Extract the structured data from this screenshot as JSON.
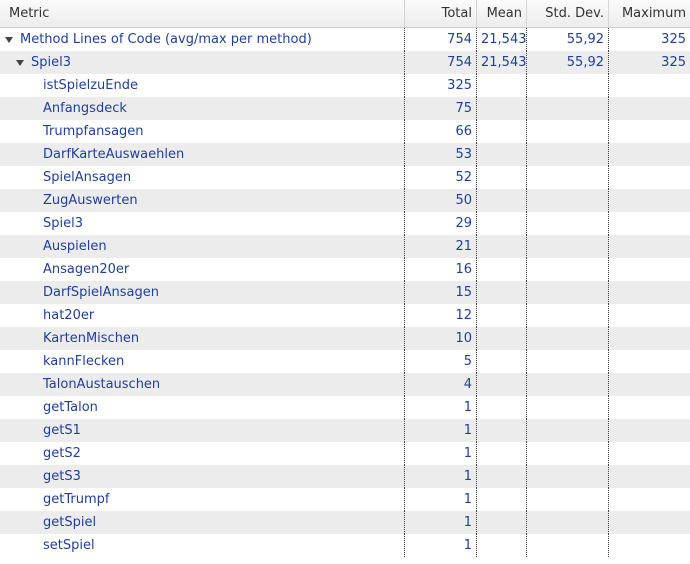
{
  "columns": {
    "metric": "Metric",
    "total": "Total",
    "mean": "Mean",
    "stddev": "Std. Dev.",
    "maximum": "Maximum"
  },
  "root": {
    "label": "Method Lines of Code (avg/max per method)",
    "total": "754",
    "mean": "21,543",
    "stddev": "55,92",
    "maximum": "325"
  },
  "class": {
    "label": "Spiel3",
    "total": "754",
    "mean": "21,543",
    "stddev": "55,92",
    "maximum": "325"
  },
  "methods": [
    {
      "label": "istSpielzuEnde",
      "total": "325"
    },
    {
      "label": "Anfangsdeck",
      "total": "75"
    },
    {
      "label": "Trumpfansagen",
      "total": "66"
    },
    {
      "label": "DarfKarteAuswaehlen",
      "total": "53"
    },
    {
      "label": "SpielAnsagen",
      "total": "52"
    },
    {
      "label": "ZugAuswerten",
      "total": "50"
    },
    {
      "label": "Spiel3",
      "total": "29"
    },
    {
      "label": "Auspielen",
      "total": "21"
    },
    {
      "label": "Ansagen20er",
      "total": "16"
    },
    {
      "label": "DarfSpielAnsagen",
      "total": "15"
    },
    {
      "label": "hat20er",
      "total": "12"
    },
    {
      "label": "KartenMischen",
      "total": "10"
    },
    {
      "label": "kannFlecken",
      "total": "5"
    },
    {
      "label": "TalonAustauschen",
      "total": "4"
    },
    {
      "label": "getTalon",
      "total": "1"
    },
    {
      "label": "getS1",
      "total": "1"
    },
    {
      "label": "getS2",
      "total": "1"
    },
    {
      "label": "getS3",
      "total": "1"
    },
    {
      "label": "getTrumpf",
      "total": "1"
    },
    {
      "label": "getSpiel",
      "total": "1"
    },
    {
      "label": "setSpiel",
      "total": "1"
    }
  ]
}
